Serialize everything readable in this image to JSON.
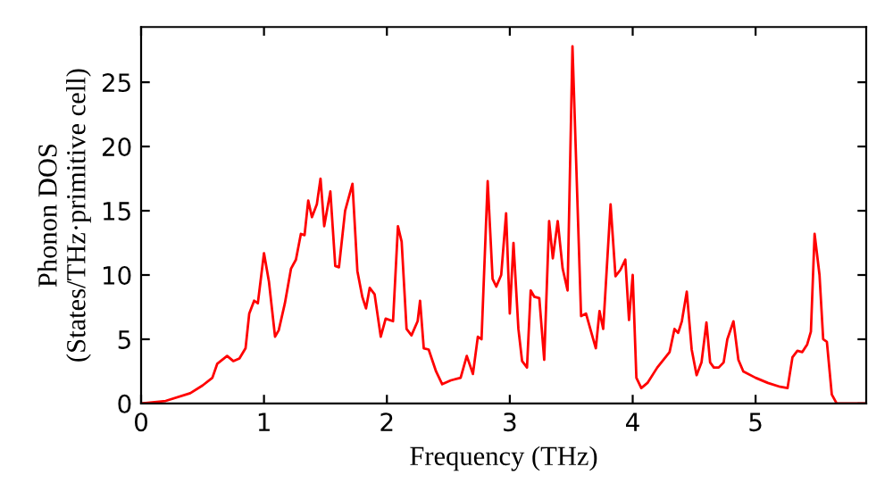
{
  "chart_data": {
    "type": "line",
    "xlabel": "Frequency (THz)",
    "ylabel": "Phonon DOS\n(States/THz·primitive cell)",
    "xlim": [
      0,
      5.9
    ],
    "ylim": [
      0,
      29.3
    ],
    "xticks": [
      0,
      1,
      2,
      3,
      4,
      5
    ],
    "yticks": [
      0,
      5,
      10,
      15,
      20,
      25
    ],
    "grid": false,
    "marker": "none",
    "line_style": "solid",
    "series": [
      {
        "color": "#ff0000",
        "x": [
          0,
          0.2,
          0.4,
          0.5,
          0.58,
          0.62,
          0.7,
          0.75,
          0.8,
          0.85,
          0.88,
          0.92,
          0.95,
          1.0,
          1.04,
          1.09,
          1.12,
          1.17,
          1.22,
          1.26,
          1.3,
          1.33,
          1.36,
          1.39,
          1.43,
          1.46,
          1.49,
          1.54,
          1.58,
          1.61,
          1.66,
          1.72,
          1.76,
          1.8,
          1.83,
          1.86,
          1.9,
          1.95,
          1.99,
          2.05,
          2.09,
          2.12,
          2.16,
          2.2,
          2.25,
          2.27,
          2.3,
          2.34,
          2.4,
          2.45,
          2.52,
          2.6,
          2.65,
          2.7,
          2.74,
          2.77,
          2.82,
          2.86,
          2.89,
          2.93,
          2.97,
          3.0,
          3.03,
          3.07,
          3.1,
          3.14,
          3.17,
          3.2,
          3.24,
          3.28,
          3.32,
          3.35,
          3.39,
          3.43,
          3.47,
          3.51,
          3.58,
          3.62,
          3.67,
          3.7,
          3.73,
          3.76,
          3.82,
          3.86,
          3.9,
          3.94,
          3.97,
          4.0,
          4.03,
          4.07,
          4.12,
          4.2,
          4.3,
          4.34,
          4.37,
          4.4,
          4.44,
          4.48,
          4.52,
          4.56,
          4.6,
          4.63,
          4.66,
          4.7,
          4.74,
          4.77,
          4.82,
          4.86,
          4.9,
          5.0,
          5.1,
          5.2,
          5.26,
          5.3,
          5.34,
          5.38,
          5.42,
          5.45,
          5.48,
          5.52,
          5.55,
          5.58,
          5.62,
          5.66,
          5.9
        ],
        "values": [
          0,
          0.2,
          0.8,
          1.4,
          2,
          3.1,
          3.7,
          3.3,
          3.5,
          4.3,
          7,
          8,
          7.8,
          11.7,
          9.5,
          5.2,
          5.7,
          7.8,
          10.5,
          11.2,
          13.2,
          13.1,
          15.8,
          14.5,
          15.5,
          17.5,
          13.8,
          16.5,
          10.7,
          10.6,
          15,
          17.1,
          10.3,
          8.3,
          7.4,
          9,
          8.5,
          5.2,
          6.6,
          6.4,
          13.8,
          12.6,
          5.8,
          5.3,
          6.4,
          8,
          4.3,
          4.2,
          2.5,
          1.5,
          1.8,
          2,
          3.7,
          2.3,
          5.2,
          5,
          17.3,
          9.7,
          9.1,
          10,
          14.8,
          7,
          12.5,
          5.8,
          3.3,
          2.8,
          8.8,
          8.3,
          8.2,
          3.4,
          14.2,
          11.3,
          14.2,
          10.5,
          8.8,
          27.8,
          6.8,
          7,
          5.3,
          4.3,
          7.2,
          5.8,
          15.5,
          9.9,
          10.4,
          11.2,
          6.5,
          10,
          2,
          1.2,
          1.6,
          2.8,
          4,
          5.8,
          5.5,
          6.4,
          8.7,
          4.2,
          2.2,
          3.2,
          6.3,
          3.2,
          2.8,
          2.8,
          3.2,
          5,
          6.4,
          3.4,
          2.5,
          2,
          1.6,
          1.3,
          1.2,
          3.6,
          4.1,
          4.0,
          4.6,
          5.6,
          13.2,
          10,
          5,
          4.8,
          0.7,
          0,
          0
        ]
      }
    ]
  }
}
